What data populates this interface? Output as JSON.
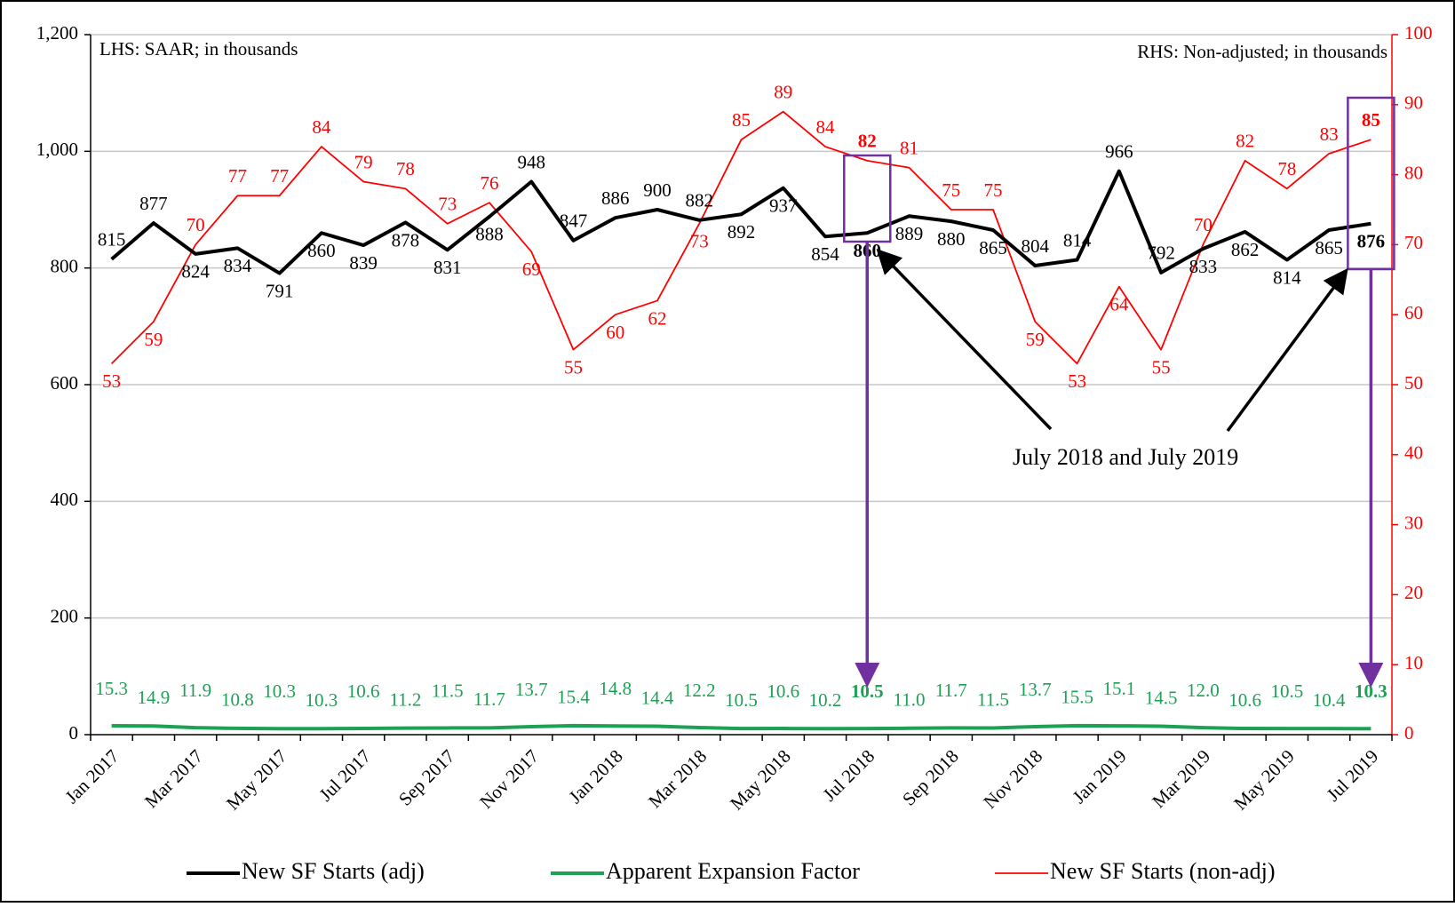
{
  "chart_data": {
    "type": "line",
    "annotations": [
      "LHS: SAAR;  in thousands",
      "RHS: Non-adjusted; in thousands",
      "July 2018 and July 2019"
    ],
    "categories": [
      "Jan 2017",
      null,
      "Mar 2017",
      null,
      "May 2017",
      null,
      "Jul 2017",
      null,
      "Sep 2017",
      null,
      "Nov 2017",
      null,
      "Jan 2018",
      null,
      "Mar 2018",
      null,
      "May 2018",
      null,
      "Jul 2018",
      null,
      "Sep 2018",
      null,
      "Nov 2018",
      null,
      "Jan 2019",
      null,
      "Mar 2019",
      null,
      "May 2019",
      null,
      "Jul 2019"
    ],
    "series": [
      {
        "name": "New SF Starts (adj)",
        "color": "#000000",
        "axis": "y",
        "values": [
          815,
          877,
          824,
          834,
          791,
          860,
          839,
          878,
          831,
          888,
          948,
          847,
          886,
          900,
          882,
          892,
          937,
          854,
          860,
          889,
          880,
          865,
          804,
          814,
          966,
          792,
          833,
          862,
          814,
          865,
          876
        ]
      },
      {
        "name": "Apparent Expansion Factor",
        "color": "#1ea055",
        "axis": "y",
        "values": [
          15.3,
          14.9,
          11.9,
          10.8,
          10.3,
          10.3,
          10.6,
          11.2,
          11.5,
          11.7,
          13.7,
          15.4,
          14.8,
          14.4,
          12.2,
          10.5,
          10.6,
          10.2,
          10.5,
          11.0,
          11.7,
          11.5,
          13.7,
          15.5,
          15.1,
          14.5,
          12.0,
          10.6,
          10.5,
          10.4,
          10.3
        ],
        "value_labels": [
          "15.3",
          "14.9",
          "11.9",
          "10.8",
          "10.3",
          "10.3",
          "10.6",
          "11.2",
          "11.5",
          "11.7",
          "13.7",
          "15.4",
          "14.8",
          "14.4",
          "12.2",
          "10.5",
          "10.6",
          "10.2",
          "10.5",
          "11.0",
          "11.7",
          "11.5",
          "13.7",
          "15.5",
          "15.1",
          "14.5",
          "12.0",
          "10.6",
          "10.5",
          "10.4",
          "10.3"
        ]
      },
      {
        "name": "New SF Starts (non-adj)",
        "color": "#ff0000",
        "axis": "y2",
        "values": [
          53,
          59,
          70,
          77,
          77,
          84,
          79,
          78,
          73,
          76,
          69,
          55,
          60,
          62,
          73,
          85,
          89,
          84,
          82,
          81,
          75,
          75,
          59,
          53,
          64,
          55,
          70,
          82,
          78,
          83,
          85
        ]
      }
    ],
    "ylim": [
      0,
      1200
    ],
    "yticks": [
      0,
      200,
      400,
      600,
      800,
      {
        "value": 1000,
        "label": "1,000"
      },
      {
        "value": 1200,
        "label": "1,200"
      }
    ],
    "y2lim": [
      0,
      100
    ],
    "y2ticks": [
      0,
      10,
      20,
      30,
      40,
      50,
      60,
      70,
      80,
      90,
      100
    ],
    "grid": true,
    "legend": "bottom"
  }
}
